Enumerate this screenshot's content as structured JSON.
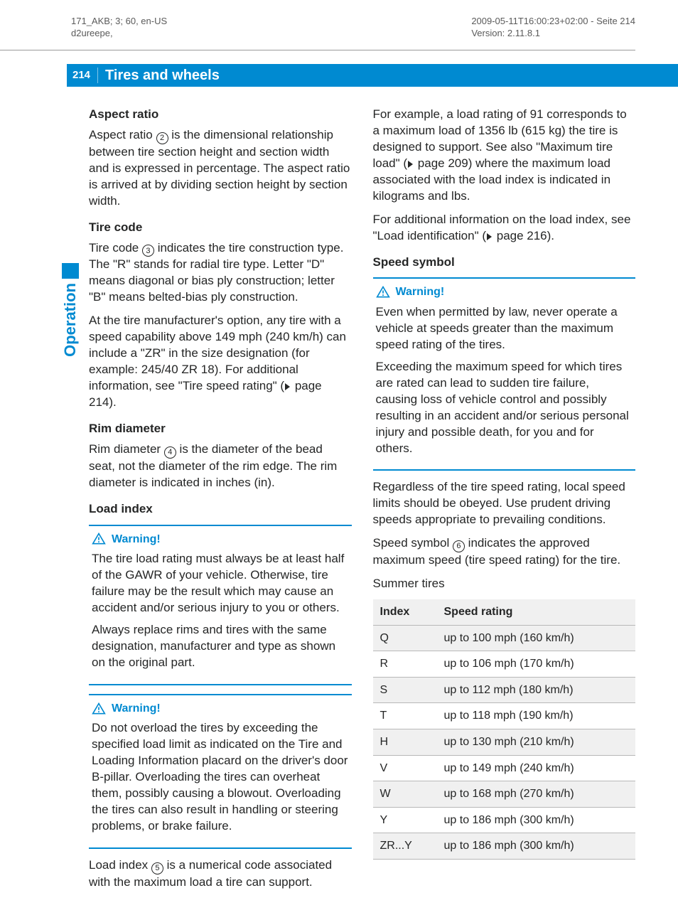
{
  "meta": {
    "left_line1": "171_AKB; 3; 60, en-US",
    "left_line2": "d2ureepe,",
    "right_line1": "2009-05-11T16:00:23+02:00 - Seite 214",
    "right_line2": "Version: 2.11.8.1"
  },
  "header": {
    "page_number": "214",
    "chapter_title": "Tires and wheels",
    "side_label": "Operation"
  },
  "colors": {
    "brand": "#008ad1",
    "text": "#252626",
    "rule": "#b8b8b8",
    "stripe": "#f0f0f0"
  },
  "left_column": {
    "aspect_ratio": {
      "heading": "Aspect ratio",
      "body_a": "Aspect ratio ",
      "circled": "2",
      "body_b": " is the dimensional relationship between tire section height and section width and is expressed in percentage. The aspect ratio is arrived at by dividing section height by section width."
    },
    "tire_code": {
      "heading": "Tire code",
      "p1_a": "Tire code ",
      "p1_circ": "3",
      "p1_b": " indicates the tire construction type. The \"R\" stands for radial tire type. Letter \"D\" means diagonal or bias ply construction; letter \"B\" means belted-bias ply construction.",
      "p2_a": "At the tire manufacturer's option, any tire with a speed capability above 149 mph (240 km/h) can include a \"ZR\" in the size designation (for example: 245/40 ZR 18). For additional information, see \"Tire speed rating\" (",
      "p2_ref": "page 214",
      "p2_b": ")."
    },
    "rim_diameter": {
      "heading": "Rim diameter",
      "body_a": "Rim diameter ",
      "circled": "4",
      "body_b": " is the diameter of the bead seat, not the diameter of the rim edge. The rim diameter is indicated in inches (in)."
    },
    "load_index": {
      "heading": "Load index",
      "warning1_label": "Warning!",
      "warning1_p1": "The tire load rating must always be at least half of the GAWR of your vehicle. Otherwise, tire failure may be the result which may cause an accident and/or serious injury to you or others.",
      "warning1_p2": "Always replace rims and tires with the same designation, manufacturer and type as shown on the original part.",
      "warning2_label": "Warning!",
      "warning2_p1": "Do not overload the tires by exceeding the specified load limit as indicated on the Tire and Loading Information placard on the driver's door B-pillar. Overloading the tires can overheat them, possibly causing a blowout. Overloading the tires can also result in handling or steering problems, or brake failure.",
      "trailing_a": "Load index ",
      "trailing_circ": "5",
      "trailing_b": " is a numerical code associated with the maximum load a tire can support."
    }
  },
  "right_column": {
    "intro_p1_a": "For example, a load rating of 91 corresponds to a maximum load of 1356 lb (615 kg) the tire is designed to support. See also \"Maximum tire load\" (",
    "intro_p1_ref": "page 209",
    "intro_p1_b": ") where the maximum load associated with the load index is indicated in kilograms and lbs.",
    "intro_p2_a": "For additional information on the load index, see \"Load identification\" (",
    "intro_p2_ref": "page 216",
    "intro_p2_b": ").",
    "speed_symbol": {
      "heading": "Speed symbol",
      "warning_label": "Warning!",
      "warning_p1": "Even when permitted by law, never operate a vehicle at speeds greater than the maximum speed rating of the tires.",
      "warning_p2": "Exceeding the maximum speed for which tires are rated can lead to sudden tire failure, causing loss of vehicle control and possibly resulting in an accident and/or serious personal injury and possible death, for you and for others.",
      "after_warning": "Regardless of the tire speed rating, local speed limits should be obeyed. Use prudent driving speeds appropriate to prevailing conditions.",
      "body_a": "Speed symbol ",
      "circled": "6",
      "body_b": " indicates the approved maximum speed (tire speed rating) for the tire.",
      "table_caption": "Summer tires",
      "table": {
        "col_index": "Index",
        "col_speed": "Speed rating",
        "rows": [
          {
            "index": "Q",
            "rating": "up to 100 mph (160 km/h)"
          },
          {
            "index": "R",
            "rating": "up to 106 mph (170 km/h)"
          },
          {
            "index": "S",
            "rating": "up to 112 mph (180 km/h)"
          },
          {
            "index": "T",
            "rating": "up to 118 mph (190 km/h)"
          },
          {
            "index": "H",
            "rating": "up to 130 mph (210 km/h)"
          },
          {
            "index": "V",
            "rating": "up to 149 mph (240 km/h)"
          },
          {
            "index": "W",
            "rating": "up to 168 mph (270 km/h)"
          },
          {
            "index": "Y",
            "rating": "up to 186 mph (300 km/h)"
          },
          {
            "index": "ZR...Y",
            "rating": "up to 186 mph (300 km/h)"
          }
        ]
      }
    }
  }
}
